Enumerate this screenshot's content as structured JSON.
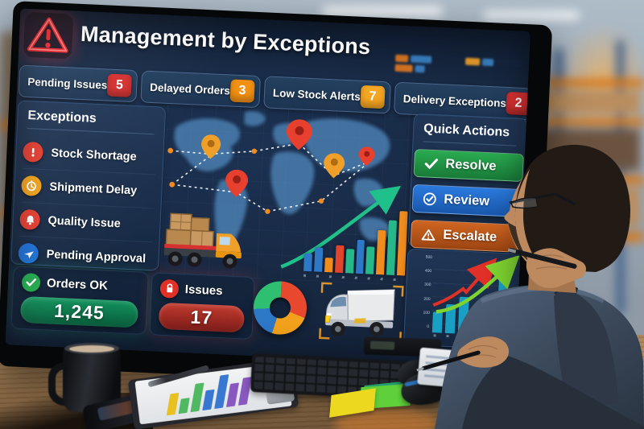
{
  "header": {
    "title": "Management by Exceptions"
  },
  "kpis": [
    {
      "label": "Pending Issues",
      "count": "5",
      "badge_color": "#d63031"
    },
    {
      "label": "Delayed Orders",
      "count": "3",
      "badge_color": "#f39112"
    },
    {
      "label": "Low Stock Alerts",
      "count": "7",
      "badge_color": "#f5a623"
    },
    {
      "label": "Delivery Exceptions",
      "count": "2",
      "badge_color": "#d63031"
    }
  ],
  "exceptions_panel": {
    "title": "Exceptions",
    "items": [
      {
        "label": "Stock Shortage",
        "icon": "exclamation-circle-icon",
        "color": "#e43d30"
      },
      {
        "label": "Shipment Delay",
        "icon": "clock-icon",
        "color": "#f0a11a"
      },
      {
        "label": "Quality Issue",
        "icon": "alarm-bell-icon",
        "color": "#e43d30"
      },
      {
        "label": "Pending Approval",
        "icon": "send-icon",
        "color": "#1e6fd6"
      }
    ]
  },
  "quick_actions": {
    "title": "Quick Actions",
    "buttons": [
      {
        "label": "Resolve",
        "icon": "check-icon",
        "color_top": "#2aab50",
        "color_bottom": "#187a38"
      },
      {
        "label": "Review",
        "icon": "check-circle-icon",
        "color_top": "#2b7ade",
        "color_bottom": "#1857ab"
      },
      {
        "label": "Escalate",
        "icon": "warning-triangle-icon",
        "color_top": "#cf6520",
        "color_bottom": "#9c4512"
      }
    ]
  },
  "summary_cards": {
    "orders": {
      "label": "Orders OK",
      "value": "1,245"
    },
    "issues": {
      "label": "Issues",
      "value": "17"
    }
  },
  "mini_widget": {
    "blocks": [
      {
        "c": "#e07820",
        "w": 16
      },
      {
        "c": "#3b82c4",
        "w": 26
      },
      {
        "c": "#16243c",
        "w": 36
      },
      {
        "c": "#f0a028",
        "w": 18
      },
      {
        "c": "#3b82c4",
        "w": 14
      },
      {
        "c": "#16243c",
        "w": 32
      },
      {
        "c": "#e07820",
        "w": 22
      },
      {
        "c": "#3b82c4",
        "w": 12
      }
    ]
  },
  "chart_data": [
    {
      "type": "bar",
      "values": [
        22,
        30,
        18,
        34,
        30,
        42,
        34,
        55,
        68,
        80
      ],
      "colors": [
        "#2e78c8",
        "#2e78c8",
        "#f08c1e",
        "#e2452e",
        "#27b88a",
        "#2e78c8",
        "#27b88a",
        "#f08c1e",
        "#27b88a",
        "#f08c1e"
      ],
      "trend": "rising-arrow",
      "trend_color": "#1fc08a",
      "x_tick_labels": "illegible",
      "context": "shipment volume bars over world map"
    },
    {
      "type": "bar",
      "values": [
        26,
        36,
        46,
        30,
        50,
        70
      ],
      "colors": [
        "#1a9fc4",
        "#1a9fc4",
        "#1a9fc4",
        "#f09c1c",
        "#1a9fc4",
        "#1a9fc4"
      ],
      "y_ticks": [
        "500",
        "400",
        "300",
        "200",
        "100",
        "0"
      ],
      "arrows": [
        "#e03028",
        "#7ed330"
      ],
      "grid": "horizontal"
    },
    {
      "type": "pie",
      "segments": [
        {
          "color": "#e8492e",
          "deg": 110
        },
        {
          "color": "#f2a11c",
          "deg": 85
        },
        {
          "color": "#2e78c8",
          "deg": 70
        },
        {
          "color": "#2fbf71",
          "deg": 95
        }
      ],
      "style": "donut"
    },
    {
      "type": "bar",
      "values": [
        26,
        18,
        34,
        24,
        40,
        28,
        33
      ],
      "colors": [
        "#e8c020",
        "#50b860",
        "#50b860",
        "#3878d0",
        "#3878d0",
        "#8858c0",
        "#8858c0"
      ],
      "context": "printed chart on clipboard paper"
    }
  ]
}
